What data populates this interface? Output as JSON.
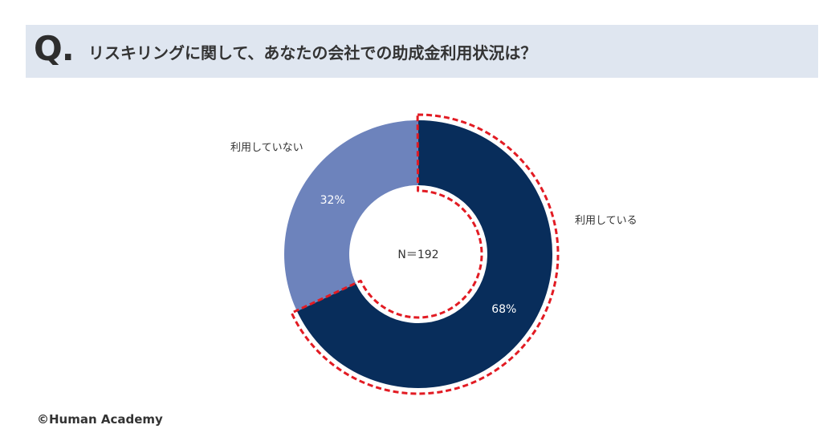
{
  "header": {
    "q_mark": "Q.",
    "question": "リスキリングに関して、あなたの会社での助成金利用状況は？"
  },
  "chart_data": {
    "type": "pie",
    "variant": "donut",
    "center_label": "N＝192",
    "slices": [
      {
        "label": "利用している",
        "value": 68,
        "display": "68%",
        "color": "#082d5b",
        "highlighted": true
      },
      {
        "label": "利用していない",
        "value": 32,
        "display": "32%",
        "color": "#6d83bc",
        "highlighted": false
      }
    ],
    "highlight_color": "#e21b23",
    "legend": "none"
  },
  "footer": {
    "copyright": "©Human Academy"
  }
}
